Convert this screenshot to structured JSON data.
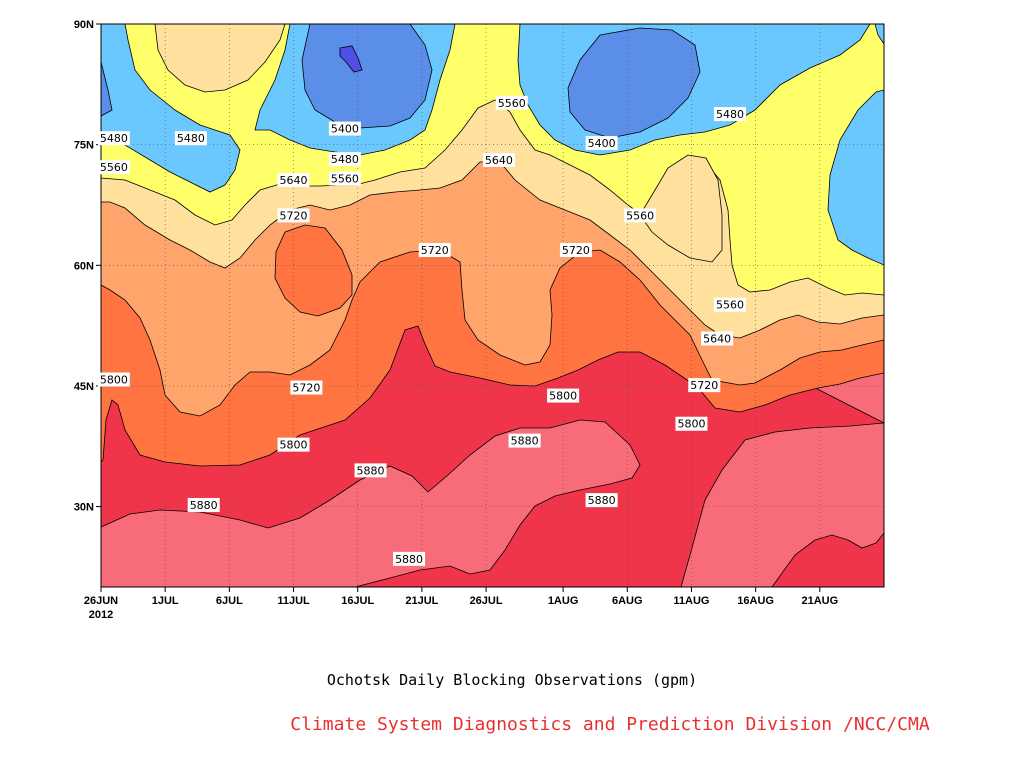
{
  "chart_data": {
    "type": "heatmap",
    "title": "Ochotsk Daily Blocking Observations (gpm)",
    "credit": "Climate System Diagnostics and Prediction Division /NCC/CMA",
    "x_tick_labels": [
      "26JUN",
      "1JUL",
      "6JUL",
      "11JUL",
      "16JUL",
      "21JUL",
      "26JUL",
      "1AUG",
      "6AUG",
      "11AUG",
      "16AUG",
      "21AUG"
    ],
    "x_year_label": "2012",
    "xlim": [
      "2012-06-26",
      "2012-08-26"
    ],
    "y_tick_labels": [
      "30N",
      "45N",
      "60N",
      "75N",
      "90N"
    ],
    "ylim": [
      20,
      90
    ],
    "grid": "dotted",
    "contour_levels": [
      5400,
      5480,
      5560,
      5640,
      5720,
      5800,
      5880
    ],
    "fill_colors": {
      "below_5400": "#5a8ee8",
      "5400_5480": "#6ac8ff",
      "5480_5560": "#ffff6a",
      "5560_5640": "#ffe09c",
      "5640_5720": "#ffa46a",
      "5720_5800": "#ff7440",
      "5800_5880": "#f86c7a",
      "above_5880": "#f0354a",
      "min_center": "#4f4fe8"
    },
    "contour_labels": [
      {
        "value": "5480",
        "date": "2012-06-27",
        "lat": 75.8
      },
      {
        "value": "5480",
        "date": "2012-07-03",
        "lat": 75.8
      },
      {
        "value": "5400",
        "date": "2012-07-15",
        "lat": 77.0
      },
      {
        "value": "5560",
        "date": "2012-07-28",
        "lat": 80.2
      },
      {
        "value": "5400",
        "date": "2012-08-04",
        "lat": 75.2
      },
      {
        "value": "5480",
        "date": "2012-08-14",
        "lat": 78.8
      },
      {
        "value": "5560",
        "date": "2012-06-27",
        "lat": 72.2
      },
      {
        "value": "5480",
        "date": "2012-07-15",
        "lat": 73.2
      },
      {
        "value": "5560",
        "date": "2012-07-15",
        "lat": 70.8
      },
      {
        "value": "5640",
        "date": "2012-07-11",
        "lat": 70.6
      },
      {
        "value": "5640",
        "date": "2012-07-27",
        "lat": 73.1
      },
      {
        "value": "5560",
        "date": "2012-08-07",
        "lat": 66.2
      },
      {
        "value": "5720",
        "date": "2012-07-11",
        "lat": 66.2
      },
      {
        "value": "5720",
        "date": "2012-07-22",
        "lat": 61.9
      },
      {
        "value": "5720",
        "date": "2012-08-02",
        "lat": 61.9
      },
      {
        "value": "5560",
        "date": "2012-08-14",
        "lat": 55.1
      },
      {
        "value": "5640",
        "date": "2012-08-13",
        "lat": 50.9
      },
      {
        "value": "5720",
        "date": "2012-08-12",
        "lat": 45.1
      },
      {
        "value": "5800",
        "date": "2012-06-27",
        "lat": 45.8
      },
      {
        "value": "5720",
        "date": "2012-07-12",
        "lat": 44.8
      },
      {
        "value": "5800",
        "date": "2012-07-11",
        "lat": 37.7
      },
      {
        "value": "5800",
        "date": "2012-08-01",
        "lat": 43.8
      },
      {
        "value": "5800",
        "date": "2012-08-11",
        "lat": 40.3
      },
      {
        "value": "5880",
        "date": "2012-07-17",
        "lat": 34.5
      },
      {
        "value": "5880",
        "date": "2012-07-29",
        "lat": 38.2
      },
      {
        "value": "5880",
        "date": "2012-07-04",
        "lat": 30.2
      },
      {
        "value": "5880",
        "date": "2012-08-04",
        "lat": 30.8
      },
      {
        "value": "5880",
        "date": "2012-07-20",
        "lat": 23.5
      }
    ]
  }
}
